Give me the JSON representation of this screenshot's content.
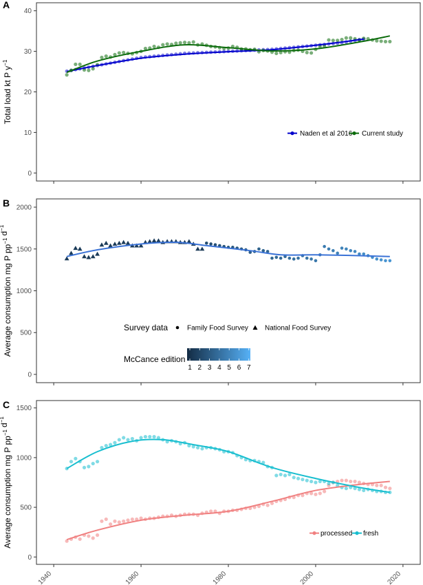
{
  "chart_data": [
    {
      "panel": "A",
      "type": "scatter",
      "xlabel": "",
      "ylabel": "Total load kt P y",
      "ylabel_sup": "−1",
      "xlim": [
        1940,
        2020
      ],
      "ylim": [
        0,
        40
      ],
      "yticks": [
        0,
        10,
        20,
        30,
        40
      ],
      "legend": {
        "placement": "bottom-right",
        "entries": [
          "Naden et al 2016",
          "Current study"
        ]
      },
      "series": [
        {
          "name": "Naden et al 2016",
          "color": "#0000cc",
          "kind": "points+smooth",
          "x": [
            1943,
            1944,
            1945,
            1946,
            1947,
            1948,
            1949,
            1950,
            1951,
            1952,
            1953,
            1954,
            1955,
            1956,
            1957,
            1958,
            1959,
            1960,
            1961,
            1962,
            1963,
            1964,
            1965,
            1966,
            1967,
            1968,
            1969,
            1970,
            1971,
            1972,
            1973,
            1974,
            1975,
            1976,
            1977,
            1978,
            1979,
            1980,
            1981,
            1982,
            1983,
            1984,
            1985,
            1986,
            1987,
            1988,
            1989,
            1990,
            1991,
            1992,
            1993,
            1994,
            1995,
            1996,
            1997,
            1998,
            1999,
            2000,
            2001,
            2002,
            2003,
            2004,
            2005,
            2006,
            2007,
            2008,
            2009,
            2010,
            2011
          ],
          "y": [
            25.1,
            25.3,
            25.5,
            25.7,
            25.9,
            26.1,
            26.3,
            26.5,
            26.7,
            26.9,
            27.1,
            27.3,
            27.5,
            27.7,
            27.9,
            28.1,
            28.3,
            28.5,
            28.6,
            28.7,
            28.8,
            28.9,
            29.0,
            29.1,
            29.2,
            29.3,
            29.4,
            29.5,
            29.55,
            29.6,
            29.65,
            29.7,
            29.75,
            29.8,
            29.85,
            29.9,
            29.95,
            30.0,
            30.05,
            30.1,
            30.15,
            30.2,
            30.25,
            30.3,
            30.35,
            30.4,
            30.45,
            30.5,
            30.6,
            30.7,
            30.8,
            30.9,
            31.0,
            31.1,
            31.2,
            31.3,
            31.4,
            31.5,
            31.6,
            31.7,
            31.8,
            31.9,
            32.0,
            32.1,
            32.3,
            32.5,
            32.7,
            32.9,
            33.0
          ],
          "smooth": [
            [
              1943,
              25.0
            ],
            [
              1950,
              26.5
            ],
            [
              1960,
              28.3
            ],
            [
              1970,
              29.3
            ],
            [
              1980,
              29.9
            ],
            [
              1990,
              30.4
            ],
            [
              2000,
              31.5
            ],
            [
              2011,
              33.0
            ]
          ]
        },
        {
          "name": "Current study",
          "color": "#0b6b0b",
          "kind": "points+smooth",
          "x": [
            1943,
            1944,
            1945,
            1946,
            1947,
            1948,
            1949,
            1950,
            1951,
            1952,
            1953,
            1954,
            1955,
            1956,
            1957,
            1958,
            1959,
            1960,
            1961,
            1962,
            1963,
            1964,
            1965,
            1966,
            1967,
            1968,
            1969,
            1970,
            1971,
            1972,
            1973,
            1974,
            1975,
            1976,
            1977,
            1978,
            1979,
            1980,
            1981,
            1982,
            1983,
            1984,
            1985,
            1986,
            1987,
            1988,
            1989,
            1990,
            1991,
            1992,
            1993,
            1994,
            1995,
            1996,
            1997,
            1998,
            1999,
            2000,
            2001,
            2002,
            2003,
            2004,
            2005,
            2006,
            2007,
            2008,
            2009,
            2010,
            2011,
            2012,
            2013,
            2014,
            2015,
            2016,
            2017
          ],
          "y": [
            24.2,
            25.3,
            26.8,
            26.8,
            25.4,
            25.3,
            25.7,
            26.7,
            28.5,
            28.8,
            28.6,
            29.2,
            29.6,
            29.7,
            29.5,
            29.4,
            29.7,
            30.0,
            30.7,
            30.8,
            31.2,
            31.0,
            31.6,
            31.8,
            31.7,
            32.0,
            32.1,
            32.2,
            32.1,
            32.3,
            31.6,
            31.8,
            31.5,
            31.2,
            31.1,
            30.9,
            30.7,
            30.8,
            31.2,
            31.0,
            30.6,
            30.6,
            30.4,
            30.5,
            29.9,
            30.2,
            30.1,
            29.8,
            29.5,
            29.7,
            29.9,
            29.8,
            30.2,
            30.3,
            30.0,
            29.7,
            29.6,
            30.5,
            31.2,
            31.3,
            32.8,
            32.7,
            32.7,
            32.9,
            33.3,
            33.3,
            33.1,
            32.8,
            33.2,
            33.1,
            32.8,
            32.6,
            32.5,
            32.4,
            32.4
          ],
          "smooth": [
            [
              1943,
              24.8
            ],
            [
              1950,
              27.6
            ],
            [
              1960,
              30.0
            ],
            [
              1970,
              31.6
            ],
            [
              1980,
              30.9
            ],
            [
              1990,
              30.1
            ],
            [
              2000,
              30.6
            ],
            [
              2010,
              32.3
            ],
            [
              2017,
              33.8
            ]
          ]
        }
      ]
    },
    {
      "panel": "B",
      "type": "scatter",
      "xlabel": "",
      "ylabel": "Average consumption mg P pp",
      "ylabel_sup1": "−1",
      "ylabel_mid": "d",
      "ylabel_sup2": "−1",
      "xlim": [
        1940,
        2020
      ],
      "ylim": [
        0,
        2000
      ],
      "yticks": [
        0,
        500,
        1000,
        1500,
        2000
      ],
      "legend": {
        "placement": "bottom-center",
        "survey_title": "Survey data",
        "survey_entries": [
          "Family Food Survey",
          "National Food Survey"
        ],
        "color_title": "McCance edition",
        "color_ticks": [
          "1",
          "2",
          "3",
          "4",
          "5",
          "6",
          "7"
        ],
        "color_low": "#132b43",
        "color_high": "#56b1f7"
      },
      "series": [
        {
          "name": "National Food Survey",
          "marker": "triangle",
          "color": "#233c59",
          "x": [
            1943,
            1944,
            1945,
            1946,
            1947,
            1948,
            1949,
            1950,
            1951,
            1952,
            1953,
            1954,
            1955,
            1956,
            1957,
            1958,
            1959,
            1960,
            1961,
            1962,
            1963,
            1964,
            1965,
            1966,
            1967,
            1968,
            1969,
            1970,
            1971,
            1972,
            1973,
            1974
          ],
          "y": [
            1385,
            1450,
            1510,
            1500,
            1410,
            1400,
            1410,
            1440,
            1550,
            1570,
            1540,
            1560,
            1570,
            1580,
            1570,
            1540,
            1540,
            1540,
            1580,
            1590,
            1600,
            1600,
            1580,
            1590,
            1590,
            1590,
            1580,
            1580,
            1590,
            1560,
            1500,
            1500
          ]
        },
        {
          "name": "Family Food Survey",
          "marker": "circle",
          "color": "#3470a8",
          "x": [
            1975,
            1976,
            1977,
            1978,
            1979,
            1980,
            1981,
            1982,
            1983,
            1984,
            1985,
            1986,
            1987,
            1988,
            1989,
            1990,
            1991,
            1992,
            1993,
            1994,
            1995,
            1996,
            1997,
            1998,
            1999,
            2000,
            2001,
            2002,
            2003,
            2004,
            2005,
            2006,
            2007,
            2008,
            2009,
            2010,
            2011,
            2012,
            2013,
            2014,
            2015,
            2016,
            2017
          ],
          "y": [
            1570,
            1560,
            1550,
            1540,
            1530,
            1520,
            1520,
            1510,
            1500,
            1490,
            1460,
            1470,
            1500,
            1480,
            1470,
            1390,
            1400,
            1390,
            1410,
            1390,
            1380,
            1390,
            1420,
            1390,
            1380,
            1360,
            1430,
            1530,
            1500,
            1480,
            1450,
            1510,
            1500,
            1480,
            1470,
            1440,
            1440,
            1420,
            1400,
            1380,
            1370,
            1360,
            1360
          ]
        },
        {
          "name": "smooth",
          "kind": "smooth",
          "color": "#3a72d6",
          "smooth": [
            [
              1943,
              1410
            ],
            [
              1950,
              1490
            ],
            [
              1960,
              1560
            ],
            [
              1968,
              1580
            ],
            [
              1975,
              1540
            ],
            [
              1985,
              1480
            ],
            [
              1992,
              1430
            ],
            [
              2000,
              1430
            ],
            [
              2010,
              1420
            ],
            [
              2017,
              1410
            ]
          ]
        }
      ]
    },
    {
      "panel": "C",
      "type": "scatter",
      "xlabel": "",
      "ylabel": "Average consumption mg P pp",
      "ylabel_sup1": "−1",
      "ylabel_mid": "d",
      "ylabel_sup2": "−1",
      "xlim": [
        1940,
        2020
      ],
      "ylim": [
        0,
        1500
      ],
      "yticks": [
        0,
        500,
        1000,
        1500
      ],
      "xticks": [
        "1940",
        "1960",
        "1980",
        "2000",
        "2020"
      ],
      "legend": {
        "placement": "bottom-right",
        "entries": [
          "processed",
          "fresh"
        ]
      },
      "series": [
        {
          "name": "processed",
          "color": "#f08080",
          "x": [
            1943,
            1944,
            1945,
            1946,
            1947,
            1948,
            1949,
            1950,
            1951,
            1952,
            1953,
            1954,
            1955,
            1956,
            1957,
            1958,
            1959,
            1960,
            1961,
            1962,
            1963,
            1964,
            1965,
            1966,
            1967,
            1968,
            1969,
            1970,
            1971,
            1972,
            1973,
            1974,
            1975,
            1976,
            1977,
            1978,
            1979,
            1980,
            1981,
            1982,
            1983,
            1984,
            1985,
            1986,
            1987,
            1988,
            1989,
            1990,
            1991,
            1992,
            1993,
            1994,
            1995,
            1996,
            1997,
            1998,
            1999,
            2000,
            2001,
            2002,
            2003,
            2004,
            2005,
            2006,
            2007,
            2008,
            2009,
            2010,
            2011,
            2012,
            2013,
            2014,
            2015,
            2016,
            2017
          ],
          "y": [
            160,
            180,
            200,
            180,
            220,
            210,
            190,
            220,
            360,
            380,
            330,
            360,
            350,
            360,
            370,
            380,
            380,
            390,
            380,
            390,
            390,
            400,
            410,
            410,
            420,
            410,
            420,
            430,
            430,
            430,
            420,
            440,
            450,
            460,
            460,
            440,
            460,
            460,
            470,
            470,
            480,
            490,
            490,
            500,
            510,
            530,
            520,
            540,
            560,
            570,
            580,
            600,
            600,
            620,
            620,
            640,
            640,
            630,
            640,
            660,
            720,
            750,
            760,
            770,
            770,
            760,
            760,
            750,
            740,
            730,
            730,
            720,
            720,
            700,
            690
          ],
          "smooth": [
            [
              1943,
              175
            ],
            [
              1950,
              270
            ],
            [
              1960,
              370
            ],
            [
              1970,
              420
            ],
            [
              1980,
              460
            ],
            [
              1990,
              560
            ],
            [
              2000,
              670
            ],
            [
              2010,
              730
            ],
            [
              2017,
              760
            ]
          ]
        },
        {
          "name": "fresh",
          "color": "#17becf",
          "x": [
            1943,
            1944,
            1945,
            1946,
            1947,
            1948,
            1949,
            1950,
            1951,
            1952,
            1953,
            1954,
            1955,
            1956,
            1957,
            1958,
            1959,
            1960,
            1961,
            1962,
            1963,
            1964,
            1965,
            1966,
            1967,
            1968,
            1969,
            1970,
            1971,
            1972,
            1973,
            1974,
            1975,
            1976,
            1977,
            1978,
            1979,
            1980,
            1981,
            1982,
            1983,
            1984,
            1985,
            1986,
            1987,
            1988,
            1989,
            1990,
            1991,
            1992,
            1993,
            1994,
            1995,
            1996,
            1997,
            1998,
            1999,
            2000,
            2001,
            2002,
            2003,
            2004,
            2005,
            2006,
            2007,
            2008,
            2009,
            2010,
            2011,
            2012,
            2013,
            2014,
            2015,
            2016,
            2017
          ],
          "y": [
            890,
            960,
            990,
            960,
            900,
            910,
            940,
            960,
            1100,
            1120,
            1130,
            1150,
            1180,
            1200,
            1180,
            1190,
            1170,
            1200,
            1210,
            1210,
            1210,
            1200,
            1180,
            1160,
            1170,
            1160,
            1140,
            1150,
            1120,
            1110,
            1100,
            1090,
            1100,
            1100,
            1090,
            1080,
            1060,
            1060,
            1050,
            1020,
            1000,
            980,
            970,
            970,
            960,
            950,
            910,
            900,
            820,
            830,
            820,
            830,
            800,
            790,
            780,
            770,
            760,
            750,
            760,
            760,
            740,
            750,
            720,
            700,
            690,
            700,
            690,
            680,
            670,
            680,
            670,
            660,
            660,
            650,
            650
          ],
          "smooth": [
            [
              1943,
              890
            ],
            [
              1950,
              1060
            ],
            [
              1958,
              1165
            ],
            [
              1965,
              1180
            ],
            [
              1972,
              1130
            ],
            [
              1980,
              1060
            ],
            [
              1990,
              900
            ],
            [
              2000,
              790
            ],
            [
              2010,
              700
            ],
            [
              2017,
              650
            ]
          ]
        }
      ]
    }
  ]
}
